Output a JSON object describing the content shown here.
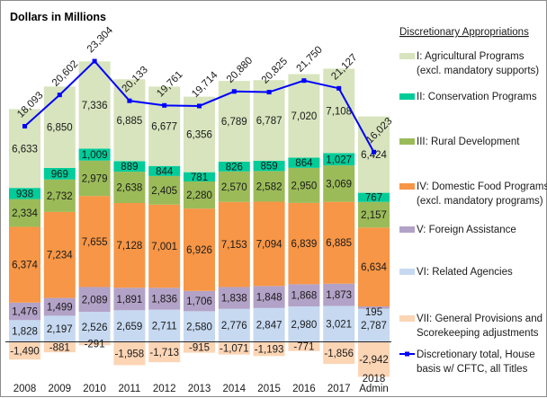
{
  "chart_data": {
    "type": "bar",
    "stacked": true,
    "title": "Dollars in Millions",
    "xlabel": "",
    "ylabel": "",
    "categories": [
      "2008",
      "2009",
      "2010",
      "2011",
      "2012",
      "2013",
      "2014",
      "2015",
      "2016",
      "2017",
      "2018 Admin"
    ],
    "category_lines": [
      [
        "2008"
      ],
      [
        "2009"
      ],
      [
        "2010"
      ],
      [
        "2011"
      ],
      [
        "2012"
      ],
      [
        "2013"
      ],
      [
        "2014"
      ],
      [
        "2015"
      ],
      [
        "2016"
      ],
      [
        "2017"
      ],
      [
        "2018",
        "Admin"
      ]
    ],
    "series": [
      {
        "name": "VI: Related Agencies",
        "color": "#c6d9f1",
        "values": [
          1828,
          2197,
          2526,
          2659,
          2711,
          2580,
          2776,
          2847,
          2980,
          3021,
          2787
        ]
      },
      {
        "name": "V: Foreign Assistance",
        "color": "#b3a2c7",
        "values": [
          1476,
          1499,
          2089,
          1891,
          1836,
          1706,
          1838,
          1848,
          1868,
          1873,
          195
        ]
      },
      {
        "name": "IV: Domestic Food Programs (excl. mandatory programs)",
        "color": "#f79646",
        "values": [
          6374,
          7234,
          7655,
          7128,
          7001,
          6926,
          7153,
          7094,
          6839,
          6885,
          6634
        ]
      },
      {
        "name": "III: Rural Development",
        "color": "#9bbb59",
        "values": [
          2334,
          2732,
          2979,
          2638,
          2405,
          2280,
          2570,
          2582,
          2950,
          3069,
          2157
        ]
      },
      {
        "name": "II: Conservation Programs",
        "color": "#00cc99",
        "values": [
          938,
          969,
          1009,
          889,
          844,
          781,
          826,
          859,
          864,
          1027,
          767
        ]
      },
      {
        "name": "I: Agricultural Programs (excl. mandatory supports)",
        "color": "#d7e4bd",
        "values": [
          6633,
          6850,
          7336,
          6885,
          6677,
          6356,
          6789,
          6787,
          7020,
          7108,
          6424
        ]
      },
      {
        "name": "VII: General Provisions and Scorekeeping adjustments",
        "color": "#fcd5b5",
        "values": [
          -1490,
          -881,
          -291,
          -1958,
          -1713,
          -915,
          -1071,
          -1193,
          -771,
          -1856,
          -2942
        ]
      }
    ],
    "line_series": {
      "name": "Discretionary total, House basis w/ CFTC, all Titles",
      "color": "#0000ff",
      "values": [
        18093,
        20602,
        23304,
        20133,
        19761,
        19714,
        20880,
        20825,
        21750,
        21127,
        16023
      ],
      "labels": [
        "18,093",
        "20,602",
        "23,304",
        "20,133",
        "19,761",
        "19,714",
        "20,880",
        "20,825",
        "21,750",
        "21,127",
        "16,023"
      ]
    },
    "ylim": [
      -3000,
      24500
    ],
    "grid": false,
    "legend_placement": "right",
    "legend": {
      "title": "Discretionary Appropriations",
      "items": [
        {
          "lines": [
            "I: Agricultural Programs",
            "(excl. mandatory supports)"
          ],
          "color": "#d7e4bd",
          "kind": "box"
        },
        {
          "lines": [
            "II: Conservation Programs"
          ],
          "color": "#00cc99",
          "kind": "box"
        },
        {
          "lines": [
            "III: Rural Development"
          ],
          "color": "#9bbb59",
          "kind": "box"
        },
        {
          "lines": [
            "IV: Domestic Food Programs",
            "(excl. mandatory programs)"
          ],
          "color": "#f79646",
          "kind": "box"
        },
        {
          "lines": [
            "V: Foreign Assistance"
          ],
          "color": "#b3a2c7",
          "kind": "box"
        },
        {
          "lines": [
            "VI: Related Agencies"
          ],
          "color": "#c6d9f1",
          "kind": "box"
        },
        {
          "lines": [
            "VII: General Provisions and",
            "Scorekeeping adjustments"
          ],
          "color": "#fcd5b5",
          "kind": "box"
        },
        {
          "lines": [
            "Discretionary total, House",
            "basis w/ CFTC, all Titles"
          ],
          "color": "#0000ff",
          "kind": "line"
        }
      ]
    }
  }
}
